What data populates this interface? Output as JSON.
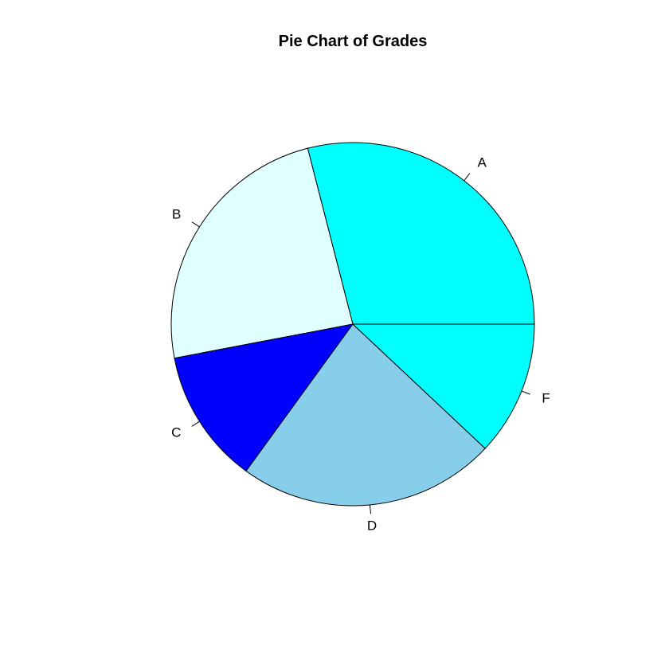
{
  "chart_data": {
    "type": "pie",
    "title": "Pie Chart of Grades",
    "start_angle_deg": 0,
    "direction": "counterclockwise",
    "slices": [
      {
        "label": "A",
        "value": 29,
        "color": "#00FFFF"
      },
      {
        "label": "B",
        "value": 24,
        "color": "#E0FFFF"
      },
      {
        "label": "C",
        "value": 12,
        "color": "#0000FF"
      },
      {
        "label": "D",
        "value": 23,
        "color": "#87CEEB"
      },
      {
        "label": "F",
        "value": 12,
        "color": "#00FFFF"
      }
    ]
  }
}
